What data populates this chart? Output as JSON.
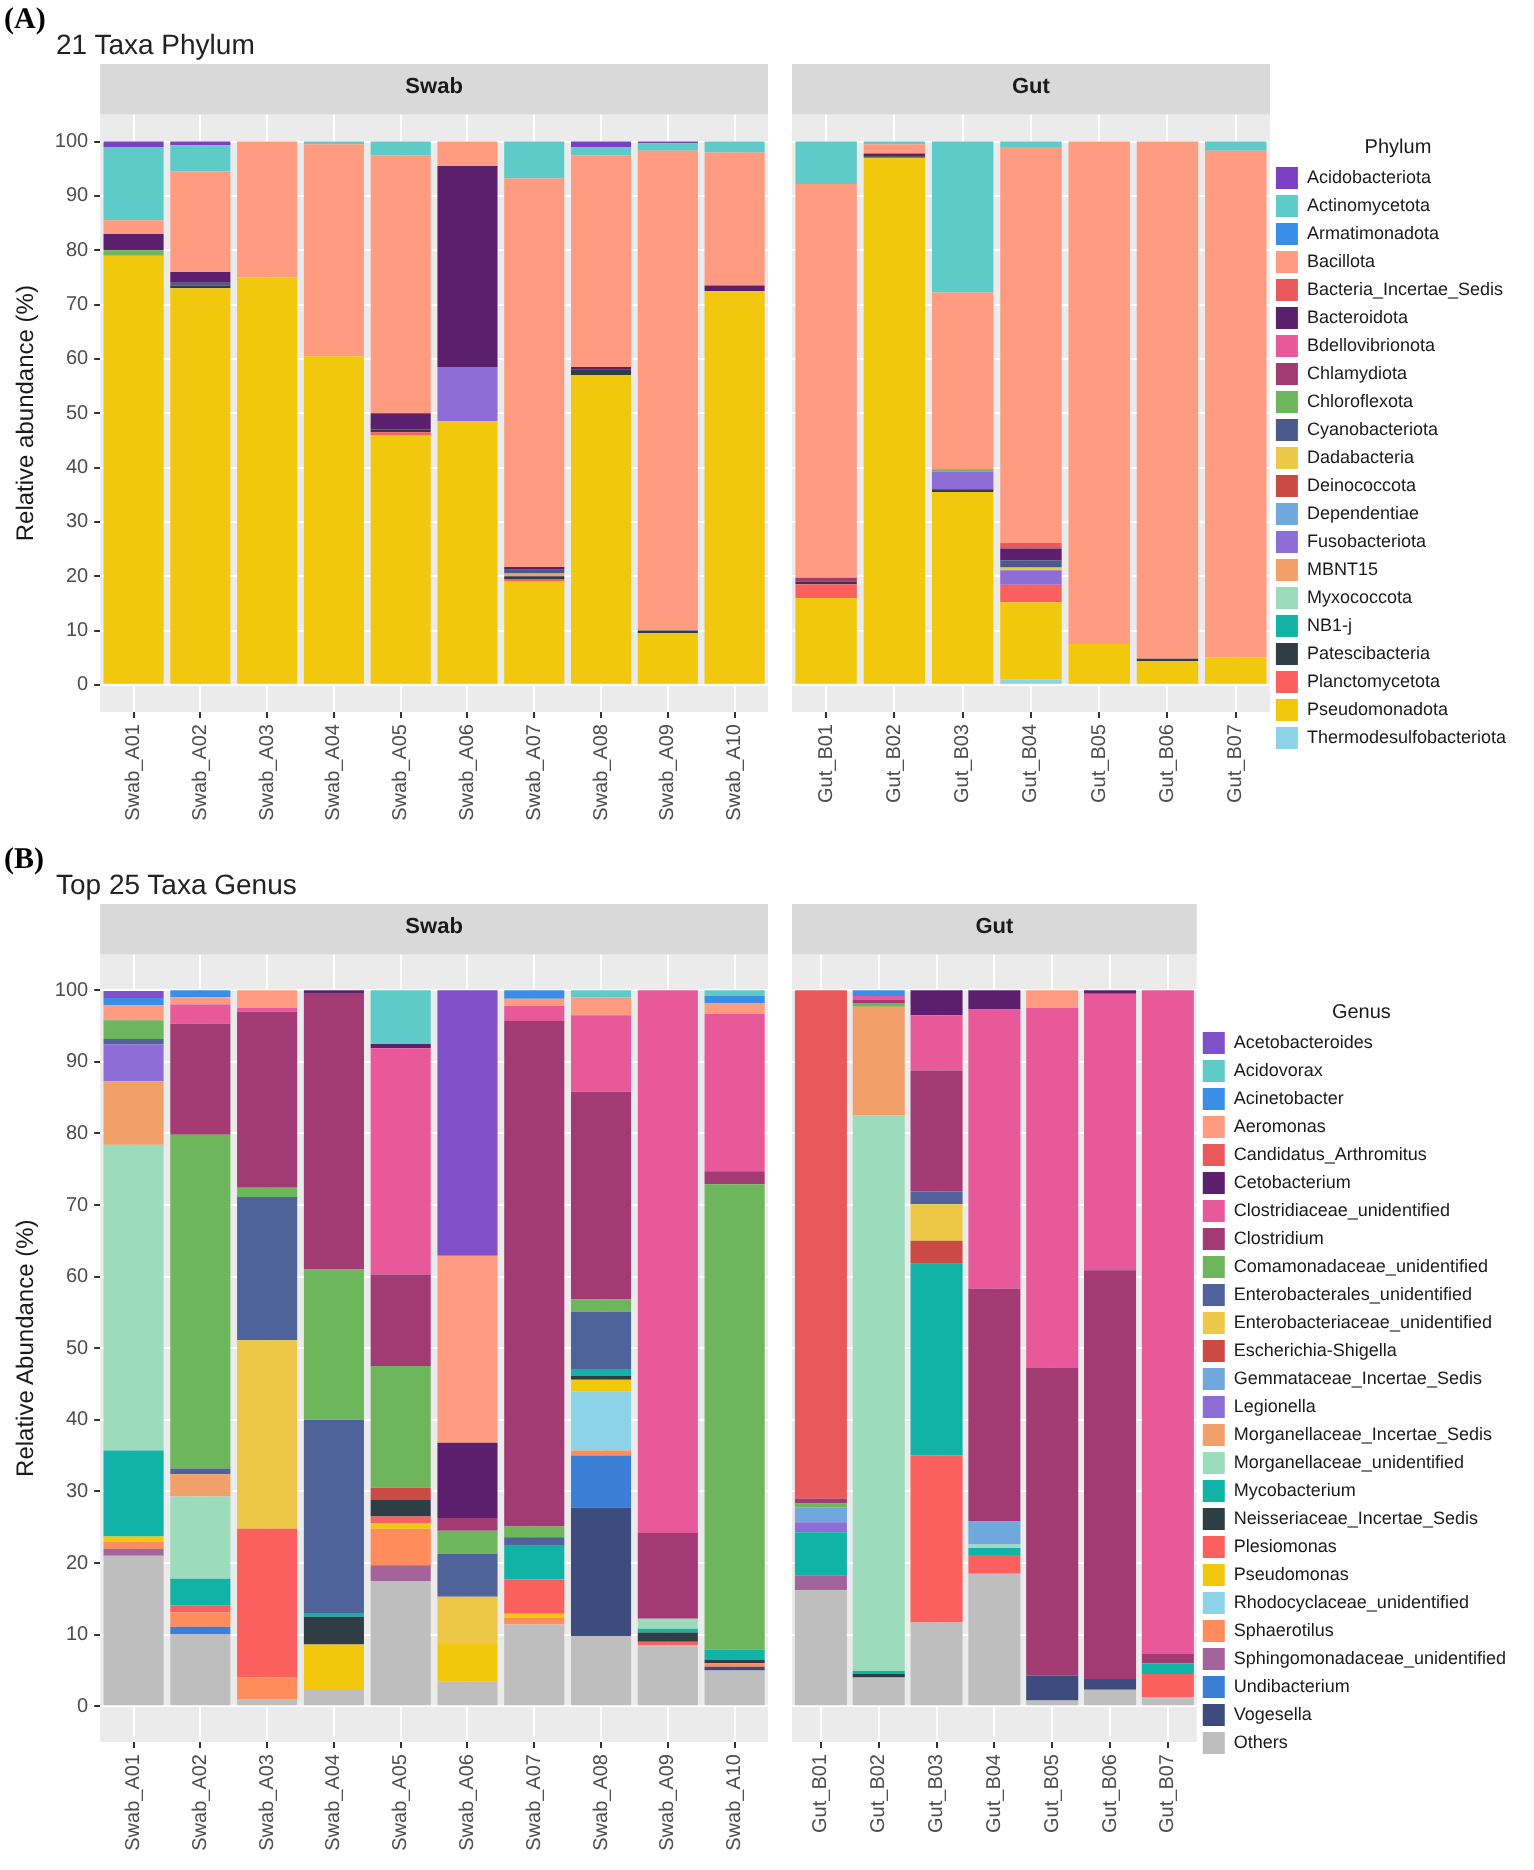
{
  "chart_data": [
    {
      "type": "bar",
      "title": "Swab",
      "annotations": [
        "(A)",
        "21 Taxa Phylum"
      ],
      "ylabel": "Relative abundance (%)",
      "stacked": true,
      "grid": true,
      "ylim": [
        -5,
        105
      ],
      "yticks": [
        0,
        10,
        20,
        30,
        40,
        50,
        60,
        70,
        80,
        90,
        100
      ],
      "categories": [
        "Swab_A01",
        "Swab_A02",
        "Swab_A03",
        "Swab_A04",
        "Swab_A05",
        "Swab_A06",
        "Swab_A07",
        "Swab_A08",
        "Swab_A09",
        "Swab_A10"
      ],
      "series": [
        {
          "color": "#8dd3e8",
          "values": [
            0,
            0,
            0,
            0,
            0,
            0,
            0,
            0,
            0,
            0
          ]
        },
        {
          "color": "#f2c80f",
          "values": [
            79,
            73,
            75,
            60.5,
            46,
            48.5,
            19,
            57,
            9.5,
            72.5
          ]
        },
        {
          "color": "#fb605e",
          "values": [
            0,
            0,
            0,
            0,
            0.5,
            0,
            0.5,
            0,
            0,
            0
          ]
        },
        {
          "color": "#2f3e45",
          "values": [
            0,
            0.5,
            0,
            0,
            0.5,
            0,
            0.5,
            1,
            0.5,
            0
          ]
        },
        {
          "color": "#10b3a5",
          "values": [
            0,
            0,
            0,
            0,
            0,
            0,
            0,
            0,
            0,
            0
          ]
        },
        {
          "color": "#9ddbbd",
          "values": [
            0,
            0,
            0,
            0,
            0,
            0,
            0,
            0,
            0,
            0
          ]
        },
        {
          "color": "#f0a068",
          "values": [
            0,
            0,
            0,
            0,
            0,
            0,
            0.5,
            0,
            0,
            0
          ]
        },
        {
          "color": "#8e6ed6",
          "values": [
            0,
            0,
            0,
            0,
            0,
            10,
            0,
            0,
            0,
            0
          ]
        },
        {
          "color": "#6fa8dc",
          "values": [
            0,
            0,
            0,
            0,
            0,
            0,
            0,
            0,
            0,
            0
          ]
        },
        {
          "color": "#cb4a44",
          "values": [
            0,
            0,
            0,
            0,
            0,
            0,
            0,
            0,
            0,
            0
          ]
        },
        {
          "color": "#ecc846",
          "values": [
            0,
            0,
            0,
            0,
            0,
            0,
            0,
            0,
            0,
            0
          ]
        },
        {
          "color": "#4a5a8c",
          "values": [
            0,
            0.5,
            0,
            0,
            0,
            0,
            0.7,
            0,
            0,
            0
          ]
        },
        {
          "color": "#6db65b",
          "values": [
            1,
            0,
            0,
            0,
            0,
            0,
            0,
            0,
            0,
            0
          ]
        },
        {
          "color": "#a23a74",
          "values": [
            0,
            0,
            0,
            0,
            0,
            0,
            0,
            0,
            0,
            0
          ]
        },
        {
          "color": "#e8599a",
          "values": [
            0,
            0,
            0,
            0,
            0,
            0,
            0,
            0,
            0,
            0
          ]
        },
        {
          "color": "#5c1f6e",
          "values": [
            3,
            2,
            0,
            0,
            3,
            37,
            0.5,
            0.5,
            0,
            1
          ]
        },
        {
          "color": "#e9585a",
          "values": [
            0,
            0,
            0,
            0,
            0,
            0,
            0,
            0,
            0,
            0
          ]
        },
        {
          "color": "#fe9b80",
          "values": [
            2.5,
            18.5,
            25,
            39,
            47.5,
            4.5,
            71.5,
            39,
            88.3,
            24.5
          ]
        },
        {
          "color": "#3a8ee6",
          "values": [
            0,
            0,
            0,
            0,
            0,
            0,
            0,
            0,
            0,
            0
          ]
        },
        {
          "color": "#5ecbc8",
          "values": [
            13.5,
            4.8,
            0,
            0.5,
            2.5,
            0,
            6.8,
            1.5,
            1.4,
            2
          ]
        },
        {
          "color": "#7b3fc4",
          "values": [
            1,
            0.7,
            0,
            0,
            0,
            0,
            0,
            1,
            0.3,
            0
          ]
        }
      ]
    },
    {
      "type": "bar",
      "title": "Gut",
      "stacked": true,
      "grid": true,
      "ylim": [
        -5,
        105
      ],
      "yticks": [
        0,
        10,
        20,
        30,
        40,
        50,
        60,
        70,
        80,
        90,
        100
      ],
      "tick_labels": "x",
      "legend": "right",
      "legend_title": "Phylum",
      "categories": [
        "Gut_B01",
        "Gut_B02",
        "Gut_B03",
        "Gut_B04",
        "Gut_B05",
        "Gut_B06",
        "Gut_B07"
      ],
      "series": [
        {
          "name": "Thermodesulfobacteriota",
          "color": "#8dd3e8",
          "values": [
            0,
            0,
            0,
            1,
            0,
            0,
            0
          ]
        },
        {
          "name": "Pseudomonadota",
          "color": "#f2c80f",
          "values": [
            16,
            97,
            35.5,
            14.2,
            7.5,
            4.4,
            5.1
          ]
        },
        {
          "name": "Planctomycetota",
          "color": "#fb605e",
          "values": [
            2.5,
            0,
            0,
            3.2,
            0,
            0,
            0
          ]
        },
        {
          "name": "Patescibacteria",
          "color": "#2f3e45",
          "values": [
            0.5,
            0.3,
            0.5,
            0,
            0,
            0.4,
            0
          ]
        },
        {
          "name": "NB1-j",
          "color": "#10b3a5",
          "values": [
            0,
            0,
            0,
            0,
            0,
            0,
            0
          ]
        },
        {
          "name": "Myxococcota",
          "color": "#9ddbbd",
          "values": [
            0,
            0,
            0,
            0,
            0,
            0,
            0
          ]
        },
        {
          "name": "MBNT15",
          "color": "#f0a068",
          "values": [
            0,
            0,
            0,
            0,
            0,
            0,
            0
          ]
        },
        {
          "name": "Fusobacteriota",
          "color": "#8e6ed6",
          "values": [
            0,
            0,
            3.2,
            2.7,
            0,
            0,
            0
          ]
        },
        {
          "name": "Dependentiae",
          "color": "#6fa8dc",
          "values": [
            0,
            0,
            0,
            0,
            0,
            0,
            0
          ]
        },
        {
          "name": "Deinococcota",
          "color": "#cb4a44",
          "values": [
            0,
            0,
            0,
            0,
            0,
            0,
            0
          ]
        },
        {
          "name": "Dadabacteria",
          "color": "#ecc846",
          "values": [
            0,
            0,
            0,
            0.5,
            0,
            0,
            0
          ]
        },
        {
          "name": "Cyanobacteriota",
          "color": "#4a5a8c",
          "values": [
            0,
            0,
            0,
            1.3,
            0,
            0,
            0
          ]
        },
        {
          "name": "Chloroflexota",
          "color": "#6db65b",
          "values": [
            0,
            0,
            0.5,
            0,
            0,
            0,
            0
          ]
        },
        {
          "name": "Chlamydiota",
          "color": "#a23a74",
          "values": [
            0.7,
            0,
            0,
            0,
            0,
            0,
            0
          ]
        },
        {
          "name": "Bdellovibrionota",
          "color": "#e8599a",
          "values": [
            0,
            0,
            0,
            0,
            0,
            0,
            0
          ]
        },
        {
          "name": "Bacteroidota",
          "color": "#5c1f6e",
          "values": [
            0,
            0.5,
            0,
            2.2,
            0,
            0,
            0
          ]
        },
        {
          "name": "Bacteria_Incertae_Sedis",
          "color": "#e9585a",
          "values": [
            0,
            0,
            0,
            1,
            0,
            0,
            0
          ]
        },
        {
          "name": "Bacillota",
          "color": "#fe9b80",
          "values": [
            72.5,
            1.7,
            32.5,
            72.9,
            92.5,
            95.2,
            93.2
          ]
        },
        {
          "name": "Armatimonadota",
          "color": "#3a8ee6",
          "values": [
            0,
            0,
            0,
            0,
            0,
            0,
            0
          ]
        },
        {
          "name": "Actinomycetota",
          "color": "#5ecbc8",
          "values": [
            7.8,
            0.5,
            27.8,
            1,
            0,
            0,
            1.7
          ]
        },
        {
          "name": "Acidobacteriota",
          "color": "#7b3fc4",
          "values": [
            0,
            0,
            0,
            0,
            0,
            0,
            0
          ]
        }
      ]
    },
    {
      "type": "bar",
      "title": "Swab",
      "annotations": [
        "(B)",
        "Top 25 Taxa Genus"
      ],
      "ylabel": "Relative Abundance (%)",
      "stacked": true,
      "grid": true,
      "ylim": [
        -5,
        105
      ],
      "yticks": [
        0,
        10,
        20,
        30,
        40,
        50,
        60,
        70,
        80,
        90,
        100
      ],
      "categories": [
        "Swab_A01",
        "Swab_A02",
        "Swab_A03",
        "Swab_A04",
        "Swab_A05",
        "Swab_A06",
        "Swab_A07",
        "Swab_A08",
        "Swab_A09",
        "Swab_A10"
      ],
      "series": [
        {
          "color": "#bebebe",
          "values": [
            21,
            10.1,
            1,
            2.4,
            17.5,
            3.4,
            11.4,
            9.8,
            8.5,
            5
          ]
        },
        {
          "color": "#3d4b7e",
          "values": [
            0,
            0,
            0,
            0,
            0,
            0,
            0,
            17.9,
            0,
            0.5
          ]
        },
        {
          "color": "#3a7fd5",
          "values": [
            0,
            1,
            0,
            0,
            0,
            0,
            0,
            7.3,
            0,
            0
          ]
        },
        {
          "color": "#a2649a",
          "values": [
            1,
            0,
            0,
            0,
            2.2,
            0,
            0,
            0,
            0,
            0
          ]
        },
        {
          "color": "#ff8c5a",
          "values": [
            1,
            2,
            3,
            0,
            5.1,
            0,
            1,
            0.7,
            0,
            0.5
          ]
        },
        {
          "color": "#8dd3e8",
          "values": [
            0,
            0,
            0,
            0,
            0,
            0,
            0,
            8.3,
            0,
            0
          ]
        },
        {
          "color": "#f2c80f",
          "values": [
            0.7,
            0,
            0,
            6.2,
            0.7,
            5.3,
            0.5,
            1.6,
            0,
            0
          ]
        },
        {
          "color": "#fb605e",
          "values": [
            0,
            1,
            20.8,
            0,
            1,
            0,
            4.8,
            0,
            0.5,
            0
          ]
        },
        {
          "color": "#2f3e45",
          "values": [
            0,
            0,
            0,
            3.9,
            2.3,
            0,
            0,
            0.5,
            1.3,
            0.5
          ]
        },
        {
          "color": "#10b3a5",
          "values": [
            12,
            3.7,
            0,
            0.5,
            0,
            0,
            4.7,
            1,
            0.5,
            1.4
          ]
        },
        {
          "color": "#9ddbbd",
          "values": [
            42.7,
            11.5,
            0,
            0,
            0,
            0,
            0,
            0,
            1.4,
            0
          ]
        },
        {
          "color": "#f0a068",
          "values": [
            8.9,
            3.1,
            0,
            0,
            0,
            0,
            0,
            0,
            0,
            0
          ]
        },
        {
          "color": "#8e6ed6",
          "values": [
            5.1,
            0,
            0,
            0,
            0,
            0,
            0,
            0,
            0,
            0
          ]
        },
        {
          "color": "#6fa8dc",
          "values": [
            0,
            0,
            0,
            0,
            0,
            0,
            0,
            0,
            0,
            0
          ]
        },
        {
          "color": "#cb4a44",
          "values": [
            0,
            0,
            0,
            0,
            1.7,
            0,
            0,
            0,
            0,
            0
          ]
        },
        {
          "color": "#ecc846",
          "values": [
            0,
            0,
            26.3,
            0,
            0,
            6.6,
            0,
            0,
            0,
            0
          ]
        },
        {
          "color": "#50629a",
          "values": [
            0.8,
            0.8,
            20,
            27,
            0,
            6,
            1.2,
            8,
            0,
            0
          ]
        },
        {
          "color": "#6db65b",
          "values": [
            2.6,
            46.6,
            1.3,
            21,
            17,
            3.2,
            1.5,
            1.7,
            0,
            65
          ]
        },
        {
          "color": "#a23a74",
          "values": [
            0,
            15.5,
            24.6,
            38.6,
            12.8,
            1.8,
            70.6,
            29,
            12,
            1.8
          ]
        },
        {
          "color": "#e8599a",
          "values": [
            0,
            2.7,
            0.5,
            0,
            31.6,
            0,
            2.1,
            10.7,
            75.8,
            22
          ]
        },
        {
          "color": "#5c1f6e",
          "values": [
            0,
            0,
            0,
            0.4,
            0.6,
            10.5,
            0,
            0,
            0,
            0
          ]
        },
        {
          "color": "#e9585a",
          "values": [
            0,
            0,
            0,
            0,
            0,
            0,
            0,
            0,
            0,
            0
          ]
        },
        {
          "color": "#fe9b80",
          "values": [
            2.1,
            1,
            2.5,
            0,
            0,
            26.1,
            1,
            2.5,
            0,
            1.5
          ]
        },
        {
          "color": "#3a8ee6",
          "values": [
            1,
            1,
            0,
            0,
            0,
            0,
            1.2,
            0,
            0,
            1
          ]
        },
        {
          "color": "#5ecbc8",
          "values": [
            0,
            0,
            0,
            0,
            7.5,
            0,
            0,
            1,
            0,
            0.8
          ]
        },
        {
          "color": "#8050c8",
          "values": [
            1,
            0,
            0,
            0,
            0,
            37.1,
            0,
            0,
            0,
            0
          ]
        }
      ]
    },
    {
      "type": "bar",
      "title": "Gut",
      "stacked": true,
      "grid": true,
      "ylim": [
        -5,
        105
      ],
      "yticks": [
        0,
        10,
        20,
        30,
        40,
        50,
        60,
        70,
        80,
        90,
        100
      ],
      "tick_labels": "x",
      "legend": "right",
      "legend_title": "Genus",
      "categories": [
        "Gut_B01",
        "Gut_B02",
        "Gut_B03",
        "Gut_B04",
        "Gut_B05",
        "Gut_B06",
        "Gut_B07"
      ],
      "series": [
        {
          "name": "Others",
          "color": "#bebebe",
          "values": [
            16.2,
            4,
            11.7,
            18.5,
            0.8,
            2.3,
            1.3
          ]
        },
        {
          "name": "Vogesella",
          "color": "#3d4b7e",
          "values": [
            0,
            0,
            0,
            0,
            3.5,
            1.5,
            0
          ]
        },
        {
          "name": "Undibacterium",
          "color": "#3a7fd5",
          "values": [
            0,
            0,
            0,
            0,
            0,
            0,
            0
          ]
        },
        {
          "name": "Sphingomonadaceae_unidentified",
          "color": "#a2649a",
          "values": [
            2.1,
            0,
            0,
            0,
            0,
            0,
            0
          ]
        },
        {
          "name": "Sphaerotilus",
          "color": "#ff8c5a",
          "values": [
            0,
            0,
            0,
            0,
            0,
            0,
            0
          ]
        },
        {
          "name": "Rhodocyclaceae_unidentified",
          "color": "#8dd3e8",
          "values": [
            0,
            0,
            0,
            0,
            0,
            0,
            0
          ]
        },
        {
          "name": "Pseudomonas",
          "color": "#f2c80f",
          "values": [
            0,
            0,
            0,
            0,
            0,
            0,
            0
          ]
        },
        {
          "name": "Plesiomonas",
          "color": "#fb605e",
          "values": [
            0,
            0,
            23.3,
            2.6,
            0,
            0,
            3.2
          ]
        },
        {
          "name": "Neisseriaceae_Incertae_Sedis",
          "color": "#2f3e45",
          "values": [
            0,
            0.5,
            0,
            0,
            0,
            0,
            0
          ]
        },
        {
          "name": "Mycobacterium",
          "color": "#10b3a5",
          "values": [
            6,
            0.4,
            26.8,
            1,
            0,
            0,
            1.5
          ]
        },
        {
          "name": "Morganellaceae_unidentified",
          "color": "#9ddbbd",
          "values": [
            0,
            77.6,
            0,
            0.5,
            0,
            0,
            0
          ]
        },
        {
          "name": "Morganellaceae_Incertae_Sedis",
          "color": "#f0a068",
          "values": [
            0,
            15.2,
            0,
            0,
            0,
            0,
            0
          ]
        },
        {
          "name": "Legionella",
          "color": "#8e6ed6",
          "values": [
            1.4,
            0,
            0,
            0,
            0,
            0,
            0
          ]
        },
        {
          "name": "Gemmataceae_Incertae_Sedis",
          "color": "#6fa8dc",
          "values": [
            2.1,
            0,
            0,
            3.2,
            0,
            0,
            0
          ]
        },
        {
          "name": "Escherichia-Shigella",
          "color": "#cb4a44",
          "values": [
            0,
            0,
            3.2,
            0,
            0,
            0,
            0
          ]
        },
        {
          "name": "Enterobacteriaceae_unidentified",
          "color": "#ecc846",
          "values": [
            0,
            0,
            5.1,
            0,
            0,
            0,
            0
          ]
        },
        {
          "name": "Enterobacterales_unidentified",
          "color": "#50629a",
          "values": [
            0,
            0,
            1.8,
            0,
            0,
            0,
            0
          ]
        },
        {
          "name": "Comamonadaceae_unidentified",
          "color": "#6db65b",
          "values": [
            0.5,
            0.5,
            0,
            0,
            0,
            0,
            0
          ]
        },
        {
          "name": "Clostridium",
          "color": "#a23a74",
          "values": [
            0.7,
            0.5,
            16.9,
            32.5,
            43,
            57.1,
            1.3
          ]
        },
        {
          "name": "Clostridiaceae_unidentified",
          "color": "#e8599a",
          "values": [
            0,
            0.5,
            7.7,
            39,
            50.2,
            38.6,
            92.7
          ]
        },
        {
          "name": "Cetobacterium",
          "color": "#5c1f6e",
          "values": [
            0,
            0,
            3.5,
            2.7,
            0,
            0.5,
            0
          ]
        },
        {
          "name": "Candidatus_Arthromitus",
          "color": "#e9585a",
          "values": [
            71,
            0,
            0,
            0,
            0,
            0,
            0
          ]
        },
        {
          "name": "Aeromonas",
          "color": "#fe9b80",
          "values": [
            0,
            0,
            0,
            0,
            2.5,
            0,
            0
          ]
        },
        {
          "name": "Acinetobacter",
          "color": "#3a8ee6",
          "values": [
            0,
            0.8,
            0,
            0,
            0,
            0,
            0
          ]
        },
        {
          "name": "Acidovorax",
          "color": "#5ecbc8",
          "values": [
            0,
            0,
            0,
            0,
            0,
            0,
            0
          ]
        },
        {
          "name": "Acetobacteroides",
          "color": "#8050c8",
          "values": [
            0,
            0,
            0,
            0,
            0,
            0,
            0
          ]
        }
      ]
    }
  ]
}
